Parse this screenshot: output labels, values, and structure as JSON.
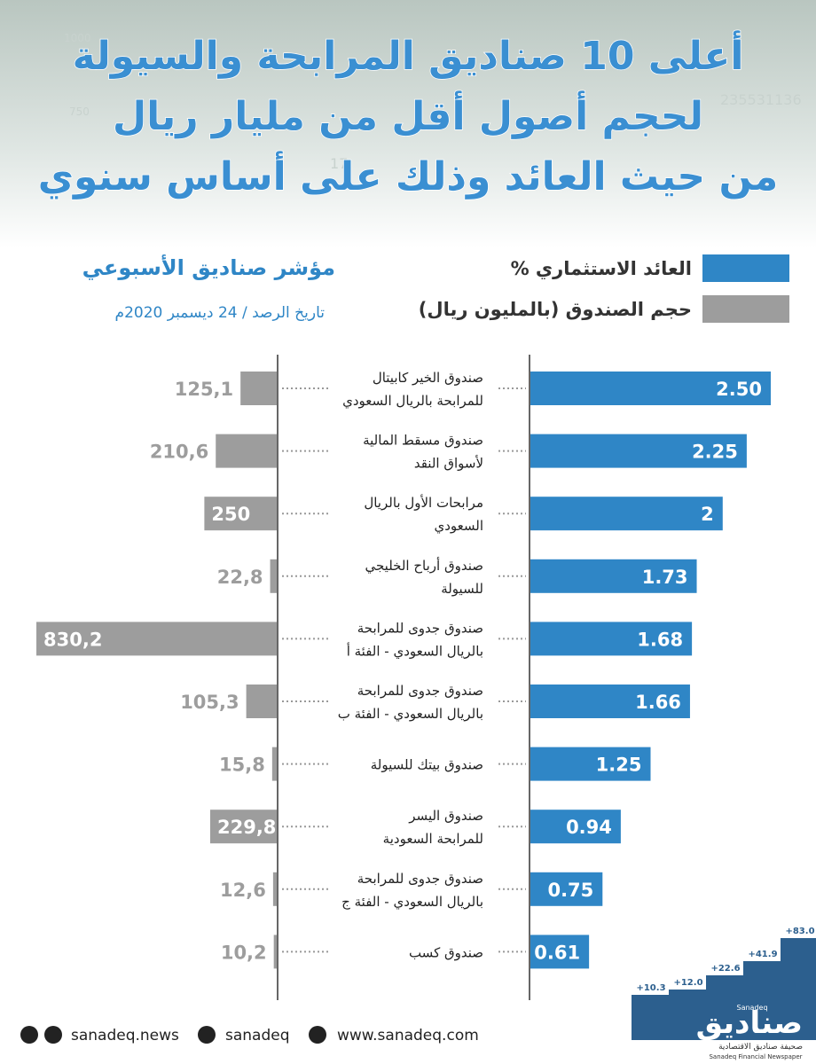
{
  "header": {
    "title_lines": [
      "أعلى 10 صناديق المرابحة والسيولة",
      "لحجم أصول أقل من مليار ريال",
      "من حيث العائد وذلك على أساس سنوي"
    ],
    "background_numbers": [
      "1000",
      "750",
      "235531136",
      "17"
    ]
  },
  "chart_data": {
    "type": "bar",
    "subtitle": "مؤشر صناديق الأسبوعي",
    "date": "تاريخ الرصد / 24 ديسمبر 2020م",
    "categories": [
      [
        "صندوق الخير كابيتال",
        "للمرابحة بالريال السعودي"
      ],
      [
        "صندوق مسقط المالية",
        "لأسواق النقد"
      ],
      [
        "مرابحات الأول بالريال",
        "السعودي"
      ],
      [
        "صندوق أرباح الخليجي",
        "للسيولة"
      ],
      [
        "صندوق جدوى للمرابحة",
        "بالريال السعودي - الفئة أ"
      ],
      [
        "صندوق جدوى للمرابحة",
        "بالريال السعودي - الفئة ب"
      ],
      [
        "صندوق بيتك للسيولة"
      ],
      [
        "صندوق اليسر",
        "للمرابحة السعودية"
      ],
      [
        "صندوق جدوى للمرابحة",
        "بالريال السعودي - الفئة ج"
      ],
      [
        "صندوق كسب"
      ]
    ],
    "series": [
      {
        "name": "العائد الاستثماري %",
        "color": "#2f86c6",
        "values": [
          2.5,
          2.25,
          2,
          1.73,
          1.68,
          1.66,
          1.25,
          0.94,
          0.75,
          0.61
        ],
        "value_labels": [
          "2.50",
          "2.25",
          "2",
          "1.73",
          "1.68",
          "1.66",
          "1.25",
          "0.94",
          "0.75",
          "0.61"
        ]
      },
      {
        "name": "حجم الصندوق (بالمليون ريال)",
        "color": "#9d9d9d",
        "values": [
          125.1,
          210.6,
          250,
          22.8,
          830.2,
          105.3,
          15.8,
          229.8,
          12.6,
          10.2
        ],
        "value_labels": [
          "125,1",
          "210,6",
          "250",
          "22,8",
          "830,2",
          "105,3",
          "15,8",
          "229,8",
          "12,6",
          "10,2"
        ]
      }
    ]
  },
  "decor": {
    "steps": [
      "+10.3",
      "+12.0",
      "+22.6",
      "+41.9",
      "+83.0"
    ]
  },
  "footer": {
    "facebook_instagram": "sanadeq.news",
    "twitter": "sanadeq",
    "website": "www.sanadeq.com",
    "logo_ar": "صناديق",
    "logo_en": "Sanadeq",
    "tagline_ar": "صحيفة صناديق الاقتصادية",
    "tagline_en": "Sanadeq Financial Newspaper"
  }
}
